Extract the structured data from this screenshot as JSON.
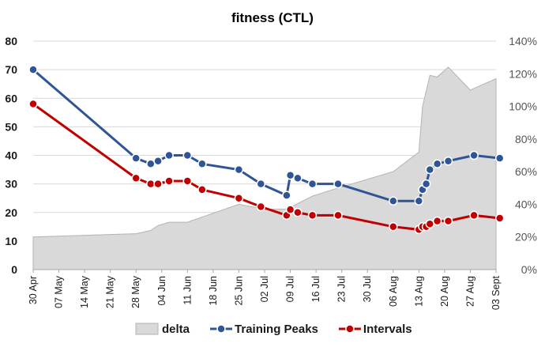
{
  "chart_data": {
    "type": "line",
    "title": "fitness (CTL)",
    "xlabel": "",
    "ylabel": "",
    "grid": true,
    "legend_position": "bottom",
    "x_axis": {
      "type": "date",
      "min": "2024-04-30",
      "max": "2024-09-03",
      "tick_labels": [
        "30 Apr",
        "07 May",
        "14 May",
        "21 May",
        "28 May",
        "04 Jun",
        "11 Jun",
        "18 Jun",
        "25 Jun",
        "02 Jul",
        "09 Jul",
        "16 Jul",
        "23 Jul",
        "30 Jul",
        "06 Aug",
        "13 Aug",
        "20 Aug",
        "27 Aug",
        "03 Sept"
      ]
    },
    "y_left": {
      "min": 0,
      "max": 80,
      "ticks": [
        "0",
        "10",
        "20",
        "30",
        "40",
        "50",
        "60",
        "70",
        "80"
      ]
    },
    "y_right": {
      "min": 0,
      "max": 140,
      "unit": "%",
      "ticks": [
        "0%",
        "20%",
        "40%",
        "60%",
        "80%",
        "100%",
        "120%",
        "140%"
      ]
    },
    "series": [
      {
        "name": "delta",
        "kind": "area",
        "axis": "right",
        "color": "#d9d9d9",
        "x": [
          "2024-04-30",
          "2024-05-28",
          "2024-06-01",
          "2024-06-03",
          "2024-06-06",
          "2024-06-11",
          "2024-06-25",
          "2024-07-02",
          "2024-07-08",
          "2024-07-15",
          "2024-07-22",
          "2024-08-06",
          "2024-08-13",
          "2024-08-14",
          "2024-08-16",
          "2024-08-18",
          "2024-08-21",
          "2024-08-27",
          "2024-09-03"
        ],
        "values": [
          20,
          22,
          24,
          27,
          29,
          29,
          40,
          37,
          37,
          45,
          50,
          60,
          72,
          100,
          119,
          118,
          124,
          110,
          117
        ]
      },
      {
        "name": "Training Peaks",
        "kind": "line",
        "axis": "left",
        "color": "#2f5597",
        "x": [
          "2024-04-30",
          "2024-05-28",
          "2024-06-01",
          "2024-06-03",
          "2024-06-06",
          "2024-06-11",
          "2024-06-15",
          "2024-06-25",
          "2024-07-01",
          "2024-07-08",
          "2024-07-09",
          "2024-07-11",
          "2024-07-15",
          "2024-07-22",
          "2024-08-06",
          "2024-08-13",
          "2024-08-14",
          "2024-08-15",
          "2024-08-16",
          "2024-08-18",
          "2024-08-21",
          "2024-08-28",
          "2024-09-04"
        ],
        "values": [
          70,
          39,
          37,
          38,
          40,
          40,
          37,
          35,
          30,
          26,
          33,
          32,
          30,
          30,
          24,
          24,
          28,
          30,
          35,
          37,
          38,
          40,
          39
        ]
      },
      {
        "name": "Intervals",
        "kind": "line",
        "axis": "left",
        "color": "#c00000",
        "x": [
          "2024-04-30",
          "2024-05-28",
          "2024-06-01",
          "2024-06-03",
          "2024-06-06",
          "2024-06-11",
          "2024-06-15",
          "2024-06-25",
          "2024-07-01",
          "2024-07-08",
          "2024-07-09",
          "2024-07-11",
          "2024-07-15",
          "2024-07-22",
          "2024-08-06",
          "2024-08-13",
          "2024-08-14",
          "2024-08-15",
          "2024-08-16",
          "2024-08-18",
          "2024-08-21",
          "2024-08-28",
          "2024-09-04"
        ],
        "values": [
          58,
          32,
          30,
          30,
          31,
          31,
          28,
          25,
          22,
          19,
          21,
          20,
          19,
          19,
          15,
          14,
          15,
          15,
          16,
          17,
          17,
          19,
          18
        ]
      }
    ]
  }
}
